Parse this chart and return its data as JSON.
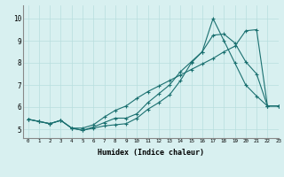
{
  "xlabel": "Humidex (Indice chaleur)",
  "bg_color": "#d8f0f0",
  "line_color": "#1a7070",
  "grid_color": "#b8dede",
  "xlim": [
    -0.5,
    23
  ],
  "ylim": [
    4.6,
    10.6
  ],
  "xticks": [
    0,
    1,
    2,
    3,
    4,
    5,
    6,
    7,
    8,
    9,
    10,
    11,
    12,
    13,
    14,
    15,
    16,
    17,
    18,
    19,
    20,
    21,
    22,
    23
  ],
  "yticks": [
    5,
    6,
    7,
    8,
    9,
    10
  ],
  "series": [
    [
      5.45,
      5.35,
      5.25,
      5.4,
      5.05,
      4.95,
      5.05,
      5.15,
      5.2,
      5.25,
      5.5,
      5.9,
      6.2,
      6.55,
      7.2,
      8.0,
      8.5,
      9.25,
      9.3,
      8.9,
      8.05,
      7.5,
      6.05,
      6.05
    ],
    [
      5.45,
      5.35,
      5.25,
      5.4,
      5.05,
      4.95,
      5.1,
      5.3,
      5.5,
      5.5,
      5.7,
      6.2,
      6.6,
      7.0,
      7.6,
      8.05,
      8.5,
      10.0,
      9.0,
      8.0,
      7.0,
      6.5,
      6.05,
      6.05
    ],
    [
      5.45,
      5.35,
      5.25,
      5.4,
      5.05,
      5.05,
      5.2,
      5.55,
      5.85,
      6.05,
      6.4,
      6.7,
      6.95,
      7.2,
      7.45,
      7.7,
      7.95,
      8.2,
      8.5,
      8.75,
      9.45,
      9.5,
      6.05,
      6.05
    ]
  ]
}
